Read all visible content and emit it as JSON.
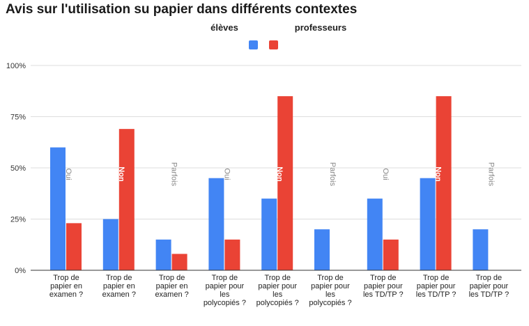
{
  "chart_data": {
    "type": "bar",
    "title": "Avis sur l'utilisation su papier dans différents contextes",
    "xlabel": "",
    "ylabel": "",
    "ylim": [
      0,
      1
    ],
    "yticks": [
      {
        "value": 0,
        "label": "0%"
      },
      {
        "value": 0.25,
        "label": "25%"
      },
      {
        "value": 0.5,
        "label": "50%"
      },
      {
        "value": 0.75,
        "label": "75%"
      },
      {
        "value": 1,
        "label": "100%"
      }
    ],
    "legend_position": "top-center",
    "categories": [
      [
        "Trop de",
        "papier en",
        "examen ?"
      ],
      [
        "Trop de",
        "papier en",
        "examen ?"
      ],
      [
        "Trop de",
        "papier en",
        "examen ?"
      ],
      [
        "Trop de",
        "papier pour",
        "les",
        "polycopiés ?"
      ],
      [
        "Trop de",
        "papier pour",
        "les",
        "polycopiés ?"
      ],
      [
        "Trop de",
        "papier pour",
        "les",
        "polycopiés ?"
      ],
      [
        "Trop de",
        "papier pour",
        "les TD/TP ?"
      ],
      [
        "Trop de",
        "papier pour",
        "les TD/TP ?"
      ],
      [
        "Trop de",
        "papier pour",
        "les TD/TP ?"
      ]
    ],
    "annotations": [
      "Oui",
      "Non",
      "Parfois",
      "Oui",
      "Non",
      "Parfois",
      "Oui",
      "Non",
      "Parfois"
    ],
    "series": [
      {
        "name": "élèves",
        "color": "#4285f4",
        "values": [
          0.6,
          0.25,
          0.15,
          0.45,
          0.35,
          0.2,
          0.35,
          0.45,
          0.2
        ]
      },
      {
        "name": "professeurs",
        "color": "#ea4335",
        "values": [
          0.23,
          0.69,
          0.08,
          0.15,
          0.85,
          0,
          0.15,
          0.85,
          0
        ]
      }
    ]
  }
}
